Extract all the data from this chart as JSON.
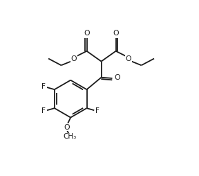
{
  "line_color": "#1a1a1a",
  "bg_color": "#ffffff",
  "lw": 1.3,
  "fs": 7.5,
  "fw": 2.88,
  "fh": 2.54,
  "dpi": 100,
  "xlim": [
    0,
    8.64
  ],
  "ylim": [
    0,
    7.62
  ]
}
